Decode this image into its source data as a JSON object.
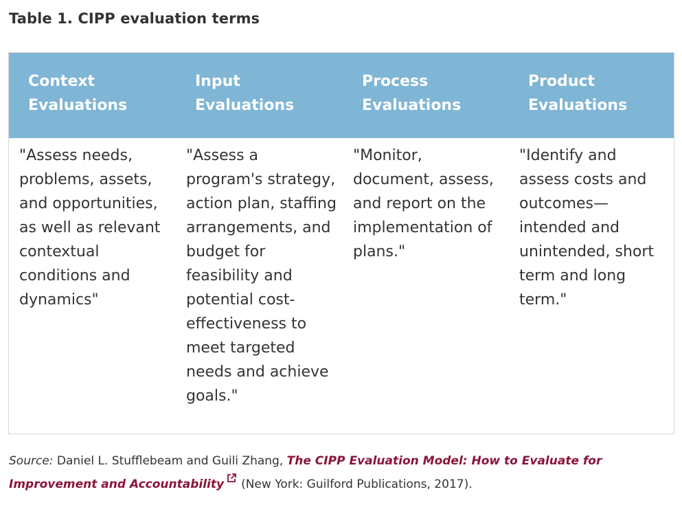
{
  "title": "Table 1. CIPP evaluation terms",
  "table": {
    "headers": [
      {
        "line1": "Context",
        "line2": "Evaluations"
      },
      {
        "line1": "Input",
        "line2": "Evaluations"
      },
      {
        "line1": "Process",
        "line2": "Evaluations"
      },
      {
        "line1": "Product",
        "line2": "Evaluations"
      }
    ],
    "cells": [
      "\"Assess needs, problems, assets, and opportunities, as well as relevant contextual conditions and dynamics\"",
      "\"Assess a program's strategy, action plan, staffing arrangements, and budget for feasibility and potential cost-effectiveness to meet targeted needs and achieve goals.\"",
      "\"Monitor, document, assess, and report on the implementation of plans.\"",
      "\"Identify and assess costs and outcomes—intended and unintended, short term and long term.\""
    ]
  },
  "source": {
    "label": "Source:",
    "authors": " Daniel L. Stufflebeam and Guili Zhang, ",
    "book_title": "The CIPP Evaluation Model: How to Evaluate for Improvement and Accountability",
    "publication": "(New York: Guilford Publications, 2017).",
    "link_icon": "external-link-icon",
    "link_color": "#8a1538"
  },
  "colors": {
    "header_bg": "#7fb5d5",
    "header_text": "#ffffff",
    "body_text": "#333333",
    "border": "#d4d4d4"
  }
}
